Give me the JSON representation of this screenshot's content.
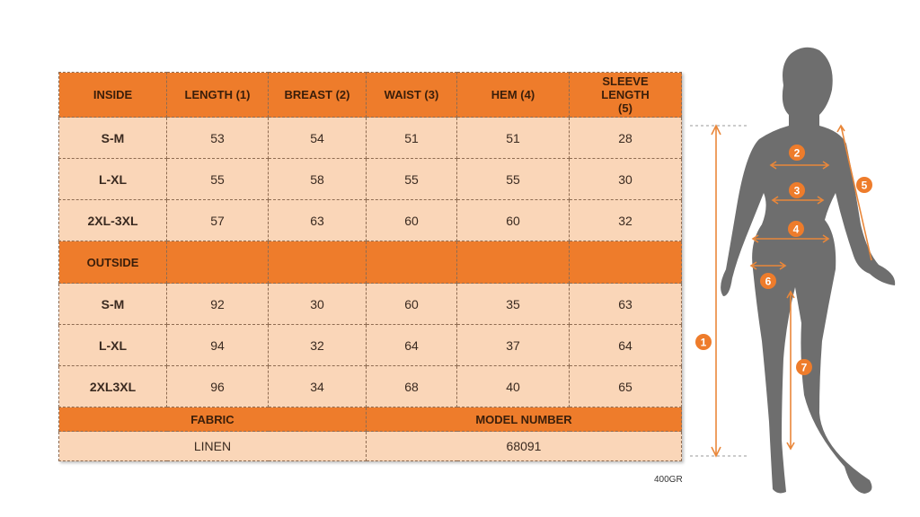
{
  "table": {
    "header": [
      "INSIDE",
      "LENGTH (1)",
      "BREAST (2)",
      "WAIST (3)",
      "HEM (4)",
      "SLEEVE LENGTH (5)"
    ],
    "inside_rows": [
      [
        "S-M",
        53,
        54,
        51,
        51,
        28
      ],
      [
        "L-XL",
        55,
        58,
        55,
        55,
        30
      ],
      [
        "2XL-3XL",
        57,
        63,
        60,
        60,
        32
      ]
    ],
    "outside_label": "OUTSIDE",
    "outside_rows": [
      [
        "S-M",
        92,
        30,
        60,
        35,
        63
      ],
      [
        "L-XL",
        94,
        32,
        64,
        37,
        64
      ],
      [
        "2XL3XL",
        96,
        34,
        68,
        40,
        65
      ]
    ],
    "footer_headers": [
      "FABRIC",
      "MODEL NUMBER"
    ],
    "footer_values": [
      "LINEN",
      68091
    ]
  },
  "figure": {
    "markers": [
      "1",
      "2",
      "3",
      "4",
      "5",
      "6",
      "7"
    ]
  },
  "note": "400GR"
}
